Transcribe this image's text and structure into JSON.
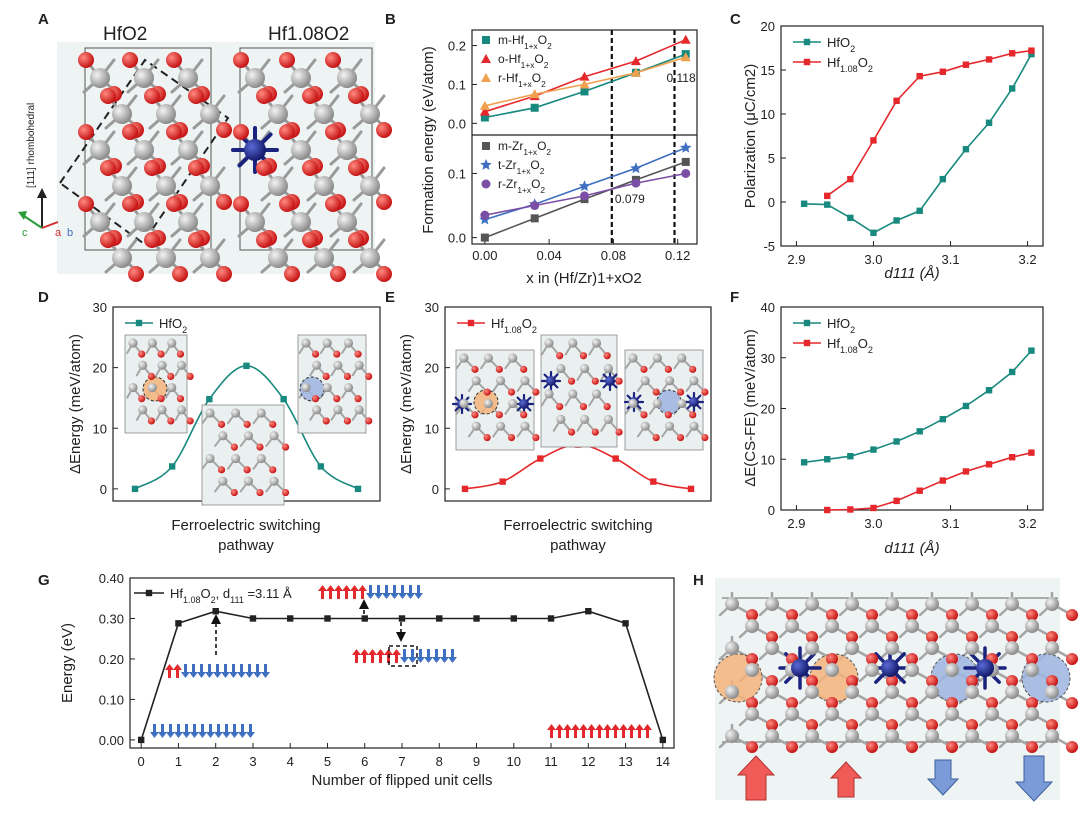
{
  "panels": {
    "A": "A",
    "B": "B",
    "C": "C",
    "D": "D",
    "E": "E",
    "F": "F",
    "G": "G",
    "H": "H"
  },
  "colors": {
    "teal": "#18897e",
    "red": "#e5282c",
    "orange": "#f0a150",
    "gray": "#555555",
    "blue": "#3f6fc1",
    "purple": "#7b4ea6",
    "black": "#222222",
    "hfblue": "#1a237e",
    "oxy": "#e02020",
    "hf": "#b0b0b0",
    "ice": "#eef3f3",
    "orangeHalo": "#f4b37a",
    "blueHalo": "#9db4e0"
  },
  "A": {
    "title_left": "HfO2",
    "title_right": "Hf1.08O2",
    "axis_label": "[111] rhombohedral",
    "axis_c": "c",
    "axis_a": "a",
    "axis_b": "b"
  },
  "B": {
    "ylabel": "Formation energy (eV/atom)",
    "xlabel": "x in (Hf/Zr)1+xO2",
    "x_ticks": [
      "0.00",
      "0.04",
      "0.08",
      "0.12"
    ],
    "top_ticks": [
      "0.0",
      "0.1",
      "0.2"
    ],
    "bottom_ticks": [
      "0.0",
      "0.1"
    ],
    "vline1_label": "0.079",
    "vline2_label": "0.118",
    "top_legend": [
      "m-Hf1+xO2",
      "o-Hf1+xO2",
      "r-Hf1+xO2"
    ],
    "bottom_legend": [
      "m-Zr1+xO2",
      "t-Zr1+xO2",
      "r-Zr1+xO2"
    ]
  },
  "chart_data": [
    {
      "panel": "B-top",
      "type": "scatter",
      "title": "",
      "xlabel": "x in (Hf/Zr)1+xO2",
      "ylabel": "Formation energy (eV/atom)",
      "xlim": [
        -0.008,
        0.132
      ],
      "ylim": [
        -0.03,
        0.24
      ],
      "series": [
        {
          "name": "m-Hf1+xO2",
          "marker": "square",
          "color": "#18897e",
          "x": [
            0,
            0.031,
            0.062,
            0.094,
            0.125
          ],
          "values": [
            0.015,
            0.04,
            0.082,
            0.13,
            0.178
          ]
        },
        {
          "name": "o-Hf1+xO2",
          "marker": "triangle",
          "color": "#e5282c",
          "x": [
            0,
            0.031,
            0.062,
            0.094,
            0.125
          ],
          "values": [
            0.03,
            0.07,
            0.12,
            0.16,
            0.215
          ]
        },
        {
          "name": "r-Hf1+xO2",
          "marker": "triangle",
          "color": "#f0a150",
          "x": [
            0,
            0.031,
            0.062,
            0.094,
            0.125
          ],
          "values": [
            0.045,
            0.075,
            0.1,
            0.13,
            0.17
          ]
        }
      ]
    },
    {
      "panel": "B-bottom",
      "type": "scatter",
      "title": "",
      "xlim": [
        -0.008,
        0.132
      ],
      "ylim": [
        -0.01,
        0.16
      ],
      "series": [
        {
          "name": "m-Zr1+xO2",
          "marker": "square",
          "color": "#555555",
          "x": [
            0,
            0.031,
            0.062,
            0.094,
            0.125
          ],
          "values": [
            0,
            0.03,
            0.06,
            0.09,
            0.118
          ]
        },
        {
          "name": "t-Zr1+xO2",
          "marker": "star",
          "color": "#3f6fc1",
          "x": [
            0,
            0.031,
            0.062,
            0.094,
            0.125
          ],
          "values": [
            0.028,
            0.052,
            0.08,
            0.108,
            0.14
          ]
        },
        {
          "name": "r-Zr1+xO2",
          "marker": "circle",
          "color": "#7b4ea6",
          "x": [
            0,
            0.031,
            0.062,
            0.094,
            0.125
          ],
          "values": [
            0.035,
            0.05,
            0.065,
            0.085,
            0.1
          ]
        }
      ]
    },
    {
      "panel": "C",
      "type": "line",
      "title": "",
      "xlabel": "d111 (Å)",
      "ylabel": "Polarization (μC/cm2)",
      "xlim": [
        2.88,
        3.22
      ],
      "ylim": [
        -5,
        20
      ],
      "x_ticks": [
        "2.9",
        "3.0",
        "3.1",
        "3.2"
      ],
      "y_ticks": [
        "-5",
        "0",
        "5",
        "10",
        "15",
        "20"
      ],
      "series": [
        {
          "name": "HfO2",
          "color": "#18897e",
          "x": [
            2.91,
            2.94,
            2.97,
            3.0,
            3.03,
            3.06,
            3.09,
            3.12,
            3.15,
            3.18,
            3.205
          ],
          "values": [
            -0.2,
            -0.3,
            -1.8,
            -3.5,
            -2.1,
            -1.0,
            2.6,
            6.0,
            9.0,
            12.9,
            16.8
          ]
        },
        {
          "name": "Hf1.08O2",
          "color": "#e5282c",
          "x": [
            2.94,
            2.97,
            3.0,
            3.03,
            3.06,
            3.09,
            3.12,
            3.15,
            3.18,
            3.205
          ],
          "values": [
            0.7,
            2.6,
            7.0,
            11.5,
            14.3,
            14.8,
            15.6,
            16.2,
            16.9,
            17.2
          ]
        }
      ]
    },
    {
      "panel": "D",
      "type": "line",
      "title": "",
      "xlabel": "Ferroelectric switching pathway",
      "ylabel": "ΔEnergy (meV/atom)",
      "ylim": [
        -2,
        30
      ],
      "y_ticks": [
        "0",
        "10",
        "20",
        "30"
      ],
      "series": [
        {
          "name": "HfO2",
          "color": "#18897e",
          "x": [
            0,
            1,
            2,
            3,
            4,
            5,
            6
          ],
          "values": [
            0,
            3.7,
            14.8,
            20.3,
            14.8,
            3.7,
            0
          ]
        }
      ]
    },
    {
      "panel": "E",
      "type": "line",
      "title": "",
      "xlabel": "Ferroelectric switching pathway",
      "ylabel": "ΔEnergy (meV/atom)",
      "ylim": [
        -2,
        30
      ],
      "y_ticks": [
        "0",
        "10",
        "20",
        "30"
      ],
      "series": [
        {
          "name": "Hf1.08O2",
          "color": "#e5282c",
          "x": [
            0,
            1,
            2,
            3,
            4,
            5,
            6
          ],
          "values": [
            0,
            1.2,
            5.0,
            7.3,
            5.0,
            1.2,
            0
          ]
        }
      ]
    },
    {
      "panel": "F",
      "type": "line",
      "title": "",
      "xlabel": "d111 (Å)",
      "ylabel": "ΔE(CS-FE) (meV/atom)",
      "xlim": [
        2.88,
        3.22
      ],
      "ylim": [
        0,
        40
      ],
      "x_ticks": [
        "2.9",
        "3.0",
        "3.1",
        "3.2"
      ],
      "y_ticks": [
        "0",
        "10",
        "20",
        "30",
        "40"
      ],
      "series": [
        {
          "name": "HfO2",
          "color": "#18897e",
          "x": [
            2.91,
            2.94,
            2.97,
            3.0,
            3.03,
            3.06,
            3.09,
            3.12,
            3.15,
            3.18,
            3.205
          ],
          "values": [
            9.4,
            10.0,
            10.6,
            11.9,
            13.5,
            15.5,
            17.9,
            20.5,
            23.6,
            27.2,
            31.4
          ]
        },
        {
          "name": "Hf1.08O2",
          "color": "#e5282c",
          "x": [
            2.94,
            2.97,
            3.0,
            3.03,
            3.06,
            3.09,
            3.12,
            3.15,
            3.18,
            3.205
          ],
          "values": [
            0,
            0.1,
            0.4,
            1.8,
            3.8,
            5.8,
            7.6,
            9.0,
            10.4,
            11.3
          ]
        }
      ]
    },
    {
      "panel": "G",
      "type": "line",
      "title": "",
      "xlabel": "Number of flipped unit cells",
      "ylabel": "Energy (eV)",
      "xlim": [
        -0.3,
        14.3
      ],
      "ylim": [
        -0.02,
        0.4
      ],
      "x_ticks": [
        "0",
        "1",
        "2",
        "3",
        "4",
        "5",
        "6",
        "7",
        "8",
        "9",
        "10",
        "11",
        "12",
        "13",
        "14"
      ],
      "y_ticks": [
        "0.00",
        "0.10",
        "0.20",
        "0.30",
        "0.40"
      ],
      "series": [
        {
          "name": "Hf1.08O2, d111 =3.11 Å",
          "color": "#222222",
          "x": [
            0,
            1,
            2,
            3,
            4,
            5,
            6,
            7,
            8,
            9,
            10,
            11,
            12,
            13,
            14
          ],
          "values": [
            0,
            0.288,
            0.318,
            0.3,
            0.3,
            0.3,
            0.3,
            0.3,
            0.3,
            0.3,
            0.3,
            0.3,
            0.318,
            0.288,
            0
          ]
        }
      ]
    }
  ],
  "C": {
    "legend": [
      "HfO2",
      "Hf1.08O2"
    ],
    "ylabel": "Polarization (μC/cm2)",
    "xlabel": "d111 (Å)"
  },
  "D": {
    "legend": "HfO2",
    "ylabel": "ΔEnergy (meV/atom)",
    "xlabel_line1": "Ferroelectric switching",
    "xlabel_line2": "pathway"
  },
  "E": {
    "legend": "Hf1.08O2",
    "ylabel": "ΔEnergy (meV/atom)",
    "xlabel_line1": "Ferroelectric switching",
    "xlabel_line2": "pathway"
  },
  "F": {
    "legend": [
      "HfO2",
      "Hf1.08O2"
    ],
    "ylabel": "ΔE(CS-FE) (meV/atom)",
    "xlabel": "d111 (Å)"
  },
  "G": {
    "legend": "Hf1.08O2, d111 =3.11 Å",
    "ylabel": "Energy (eV)",
    "xlabel": "Number of flipped unit cells"
  }
}
